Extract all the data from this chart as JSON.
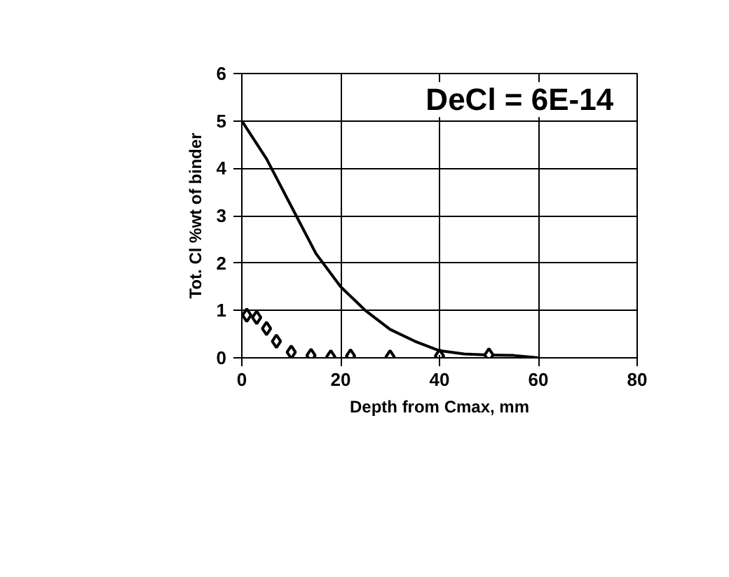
{
  "chart_data": {
    "type": "line",
    "xlabel": "Depth from Cmax, mm",
    "ylabel": "Tot. Cl %wt of binder",
    "annotations": [
      "DeCl = 6E-14"
    ],
    "series": [
      {
        "color": "#000000",
        "marker": "none",
        "line_style": "solid",
        "x": [
          0,
          5,
          10,
          15,
          20,
          25,
          30,
          35,
          40,
          45,
          50,
          55,
          60
        ],
        "values": [
          5,
          4.2,
          3.2,
          2.2,
          1.5,
          1.0,
          0.6,
          0.35,
          0.15,
          0.08,
          0.06,
          0.05,
          0
        ]
      },
      {
        "type": "scatter",
        "color": "#000000",
        "marker": "diamond",
        "x": [
          1,
          3,
          5,
          7,
          10,
          14,
          18,
          22,
          30,
          40,
          50
        ],
        "values": [
          0.9,
          0.85,
          0.62,
          0.35,
          0.12,
          0.05,
          0.02,
          0.04,
          0.02,
          0.04,
          0.06
        ]
      }
    ],
    "xlim": [
      0,
      80
    ],
    "xticks": [
      0,
      20,
      40,
      60,
      80
    ],
    "ylim": [
      0,
      6
    ],
    "yticks": [
      0,
      1,
      2,
      3,
      4,
      5,
      6
    ],
    "grid": true
  }
}
